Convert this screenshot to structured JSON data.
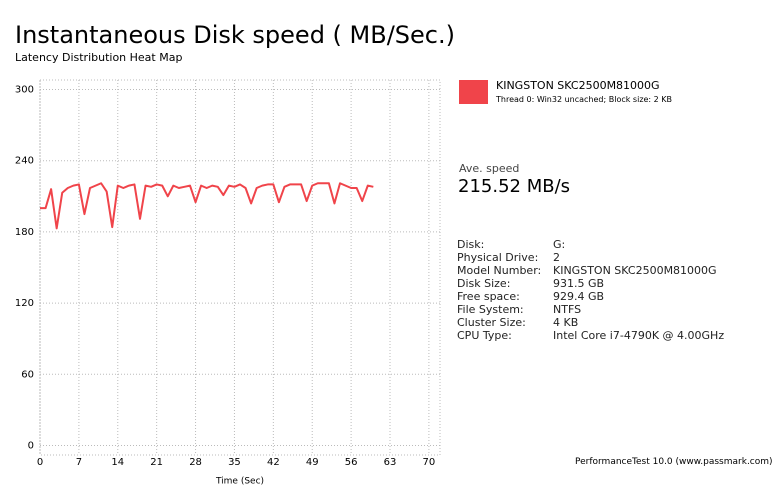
{
  "chart_data": {
    "type": "line",
    "title": "Instantaneous Disk speed ( MB/Sec.)",
    "subtitle": "Latency Distribution Heat Map",
    "xlabel": "Time (Sec)",
    "x": [
      0,
      1,
      2,
      3,
      4,
      5,
      6,
      7,
      8,
      9,
      10,
      11,
      12,
      13,
      14,
      15,
      16,
      17,
      18,
      19,
      20,
      21,
      22,
      23,
      24,
      25,
      26,
      27,
      28,
      29,
      30,
      31,
      32,
      33,
      34,
      35,
      36,
      37,
      38,
      39,
      40,
      41,
      42,
      43,
      44,
      45,
      46,
      47,
      48,
      49,
      50,
      51,
      52,
      53,
      54,
      55,
      56,
      57,
      58,
      59,
      60
    ],
    "series": [
      {
        "name": "KINGSTON SKC2500M81000G",
        "color": "#f0444a",
        "values": [
          200,
          200,
          216,
          183,
          213,
          217,
          219,
          220,
          195,
          217,
          219,
          221,
          214,
          184,
          219,
          217,
          219,
          220,
          191,
          219,
          218,
          220,
          219,
          210,
          219,
          217,
          218,
          219,
          205,
          219,
          217,
          219,
          218,
          211,
          219,
          218,
          220,
          217,
          204,
          217,
          219,
          220,
          220,
          205,
          218,
          220,
          220,
          220,
          206,
          219,
          221,
          221,
          221,
          204,
          221,
          219,
          217,
          217,
          206,
          219,
          218
        ]
      }
    ],
    "legend_note": "Thread 0: Win32 uncached; Block size: 2 KB",
    "xlim": [
      0,
      72
    ],
    "ylim": [
      -8,
      308
    ],
    "xticks": [
      0,
      7,
      14,
      21,
      28,
      35,
      42,
      49,
      56,
      63,
      70
    ],
    "yticks": [
      0,
      60,
      120,
      180,
      240,
      300
    ],
    "grid": true
  },
  "panel": {
    "avg_label": "Ave. speed",
    "avg_value": "215.52 MB/s",
    "info": [
      [
        "Disk:",
        "G:"
      ],
      [
        "Physical Drive:",
        "2"
      ],
      [
        "Model Number:",
        "KINGSTON SKC2500M81000G"
      ],
      [
        "Disk Size:",
        "931.5 GB"
      ],
      [
        "Free space:",
        "929.4 GB"
      ],
      [
        "File System:",
        "NTFS"
      ],
      [
        "Cluster Size:",
        "4 KB"
      ],
      [
        "CPU Type:",
        "Intel Core i7-4790K @ 4.00GHz"
      ]
    ],
    "footer": "PerformanceTest 10.0 (www.passmark.com)"
  }
}
